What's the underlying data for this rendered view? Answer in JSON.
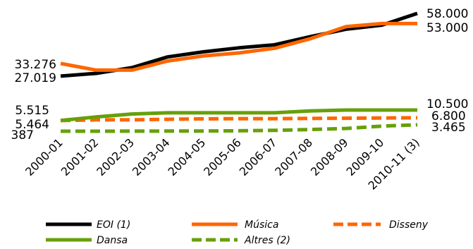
{
  "chart_data": {
    "type": "line",
    "categories": [
      "2000-01",
      "2001-02",
      "2002-03",
      "2003-04",
      "2004-05",
      "2005-06",
      "2006-07",
      "2007-08",
      "2008-09",
      "2009-10",
      "2010-11 (3)"
    ],
    "series": [
      {
        "name": "EOI (1)",
        "color": "#000000",
        "dash": false,
        "values": [
          27019,
          28400,
          31200,
          36500,
          39000,
          41000,
          42500,
          46500,
          50200,
          52200,
          58000
        ]
      },
      {
        "name": "Música",
        "color": "#ff6600",
        "dash": false,
        "values": [
          33276,
          30000,
          30000,
          34500,
          37000,
          38500,
          40800,
          45500,
          51500,
          53000,
          53000
        ]
      },
      {
        "name": "Disseny",
        "color": "#ff6600",
        "dash": true,
        "values": [
          5464,
          5800,
          5800,
          6100,
          6300,
          6400,
          6400,
          6500,
          6600,
          6700,
          6800
        ]
      },
      {
        "name": "Dansa",
        "color": "#66a00a",
        "dash": false,
        "values": [
          5515,
          7200,
          8600,
          9200,
          9200,
          9200,
          9200,
          10100,
          10500,
          10500,
          10500
        ]
      },
      {
        "name": "Altres (2)",
        "color": "#66a00a",
        "dash": true,
        "values": [
          387,
          400,
          420,
          450,
          500,
          600,
          800,
          1200,
          1700,
          2800,
          3465
        ]
      }
    ],
    "start_labels": {
      "top": "33.276",
      "bottom": "27.019"
    },
    "start_labels_lower": {
      "top": "5.515",
      "middle": "5.464",
      "bottom": "387"
    },
    "end_labels": {
      "eoi": "58.000",
      "musica": "53.000",
      "dansa": "10.500",
      "disseny": "6.800",
      "altres": "3.465"
    },
    "grid": false,
    "legend_position": "bottom"
  }
}
